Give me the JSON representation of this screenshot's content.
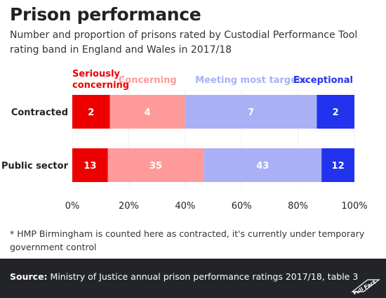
{
  "title": "Prison performance",
  "subtitle": "Number and proportion of prisons rated by Custodial Performance Tool rating band in England and Wales in 2017/18",
  "footnote": "* HMP Birmingham is counted here as contracted, it's currently under temporary government control",
  "source": {
    "label": "Source:",
    "text": "Ministry of Justice annual prison performance ratings 2017/18, table 3"
  },
  "logo": {
    "text": "Full Fact",
    "icon": "full-fact-logo"
  },
  "chart_data": {
    "type": "bar",
    "orientation": "horizontal",
    "stacked": "percent",
    "categories": [
      "Contracted",
      "Public sector"
    ],
    "series": [
      {
        "name": "Seriously concerning",
        "color": "#ee0000",
        "values": [
          2,
          13
        ]
      },
      {
        "name": "Concerning",
        "color": "#ff9a9a",
        "values": [
          4,
          35
        ]
      },
      {
        "name": "Meeting most targets",
        "color": "#a9b0f5",
        "values": [
          7,
          43
        ]
      },
      {
        "name": "Exceptional",
        "color": "#2233ee",
        "values": [
          2,
          12
        ]
      }
    ],
    "xlim": [
      0,
      100
    ],
    "xticks": [
      "0%",
      "20%",
      "40%",
      "60%",
      "80%",
      "100%"
    ],
    "grid": "vertical dotted",
    "legend": "top"
  }
}
